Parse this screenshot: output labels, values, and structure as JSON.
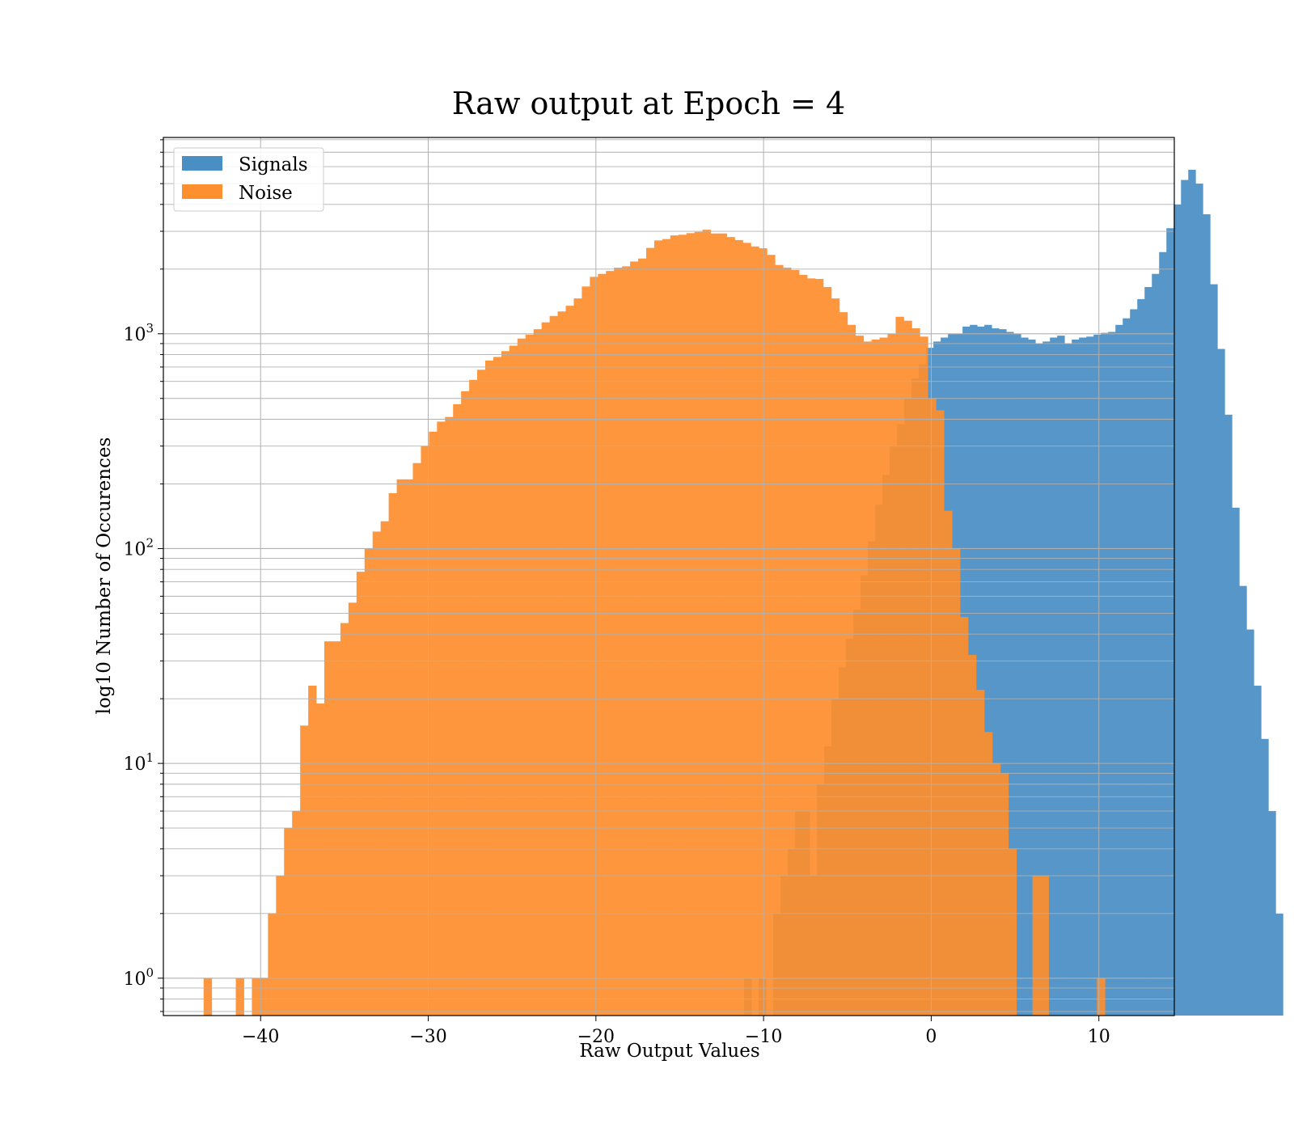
{
  "chart_data": {
    "type": "histogram",
    "title": "Raw output at Epoch = 4",
    "xlabel": "Raw Output Values",
    "ylabel": "log10 Number of Occurences",
    "xlim": [
      -45.8,
      14.5
    ],
    "ylim": [
      0.67,
      8200
    ],
    "y_scale": "log",
    "grid": true,
    "legend_position": "upper-left",
    "x_ticks": [
      {
        "value": -40,
        "label": "−40"
      },
      {
        "value": -30,
        "label": "−30"
      },
      {
        "value": -20,
        "label": "−20"
      },
      {
        "value": -10,
        "label": "−10"
      },
      {
        "value": 0,
        "label": "0"
      },
      {
        "value": 10,
        "label": "10"
      }
    ],
    "y_ticks": [
      {
        "value": 1,
        "base": "10",
        "exp": "0"
      },
      {
        "value": 10,
        "base": "10",
        "exp": "1"
      },
      {
        "value": 100,
        "base": "10",
        "exp": "2"
      },
      {
        "value": 1000,
        "base": "10",
        "exp": "3"
      }
    ],
    "series": [
      {
        "name": "Signals",
        "color": "#4a8fc4",
        "bin_start": -11.16,
        "bin_width": 0.4343,
        "counts": [
          1,
          0,
          1,
          0,
          2,
          3,
          4,
          6,
          6,
          3,
          8,
          12,
          20,
          28,
          38,
          52,
          75,
          108,
          160,
          220,
          300,
          380,
          500,
          620,
          720,
          860,
          920,
          960,
          1000,
          1000,
          1080,
          1100,
          1080,
          1100,
          1060,
          1050,
          1020,
          1000,
          960,
          940,
          900,
          920,
          960,
          980,
          900,
          940,
          960,
          970,
          990,
          1010,
          1020,
          1100,
          1180,
          1300,
          1450,
          1650,
          1900,
          2400,
          3100,
          4000,
          5200,
          5800,
          5000,
          3600,
          1700,
          850,
          420,
          155,
          67,
          42,
          23,
          13,
          6,
          2
        ]
      },
      {
        "name": "Noise",
        "color": "#fd8f2f",
        "bin_start": -43.4,
        "bin_width": 0.48,
        "counts": [
          1,
          0,
          0,
          0,
          1,
          0,
          1,
          1,
          2,
          3,
          5,
          6,
          15,
          23,
          19,
          37,
          37,
          45,
          56,
          78,
          100,
          120,
          134,
          181,
          210,
          210,
          250,
          300,
          350,
          390,
          410,
          470,
          540,
          610,
          680,
          750,
          780,
          830,
          880,
          950,
          990,
          1050,
          1130,
          1210,
          1270,
          1350,
          1460,
          1660,
          1840,
          1900,
          1960,
          2030,
          2060,
          2170,
          2240,
          2510,
          2720,
          2760,
          2870,
          2890,
          2940,
          2980,
          3050,
          2930,
          2930,
          2820,
          2730,
          2650,
          2550,
          2500,
          2330,
          2090,
          2030,
          1980,
          1880,
          1810,
          1800,
          1650,
          1460,
          1260,
          1100,
          980,
          920,
          940,
          960,
          1000,
          1200,
          1150,
          1060,
          970,
          500,
          440,
          150,
          100,
          48,
          32,
          22,
          14,
          10,
          9,
          4,
          0,
          0,
          3,
          3,
          0,
          0,
          0,
          0,
          0,
          0,
          1
        ]
      }
    ]
  }
}
